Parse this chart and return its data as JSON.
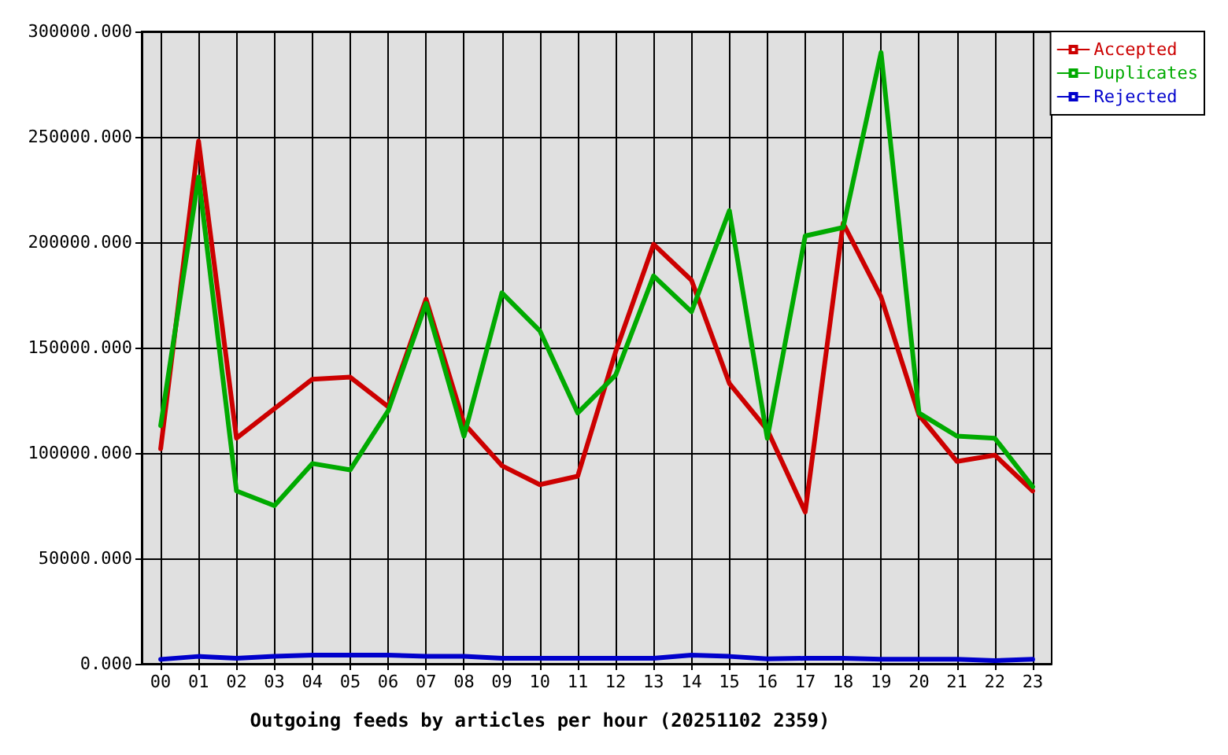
{
  "chart_data": {
    "type": "line",
    "xlabel": "Outgoing feeds by articles per hour (20251102 2359)",
    "categories": [
      "00",
      "01",
      "02",
      "03",
      "04",
      "05",
      "06",
      "07",
      "08",
      "09",
      "10",
      "11",
      "12",
      "13",
      "14",
      "15",
      "16",
      "17",
      "18",
      "19",
      "20",
      "21",
      "22",
      "23"
    ],
    "series": [
      {
        "name": "Accepted",
        "color": "#cc0000",
        "values": [
          102000,
          248000,
          107000,
          121000,
          135000,
          136000,
          122000,
          173000,
          114000,
          94000,
          85000,
          89000,
          148000,
          199000,
          182000,
          133000,
          111000,
          72000,
          209000,
          174000,
          118000,
          96000,
          99000,
          82000
        ]
      },
      {
        "name": "Duplicates",
        "color": "#00aa00",
        "values": [
          113000,
          231000,
          82000,
          75000,
          95000,
          92000,
          120000,
          171000,
          108000,
          176000,
          158000,
          119000,
          137000,
          184000,
          167000,
          215000,
          107000,
          203000,
          207000,
          290000,
          119000,
          108000,
          107000,
          84000
        ]
      },
      {
        "name": "Rejected",
        "color": "#0000cc",
        "values": [
          2100,
          3500,
          2600,
          3500,
          4100,
          4100,
          4100,
          3500,
          3500,
          2600,
          2600,
          2600,
          2600,
          2600,
          4100,
          3500,
          2300,
          2600,
          2600,
          2100,
          2100,
          2100,
          1500,
          2100
        ]
      }
    ],
    "ylim": [
      0,
      300000
    ],
    "yticks": [
      {
        "value": 0,
        "label": "0.000"
      },
      {
        "value": 50000,
        "label": "50000.000"
      },
      {
        "value": 100000,
        "label": "100000.000"
      },
      {
        "value": 150000,
        "label": "150000.000"
      },
      {
        "value": 200000,
        "label": "200000.000"
      },
      {
        "value": 250000,
        "label": "250000.000"
      },
      {
        "value": 300000,
        "label": "300000.000"
      }
    ],
    "grid": true,
    "legend": "top right"
  }
}
